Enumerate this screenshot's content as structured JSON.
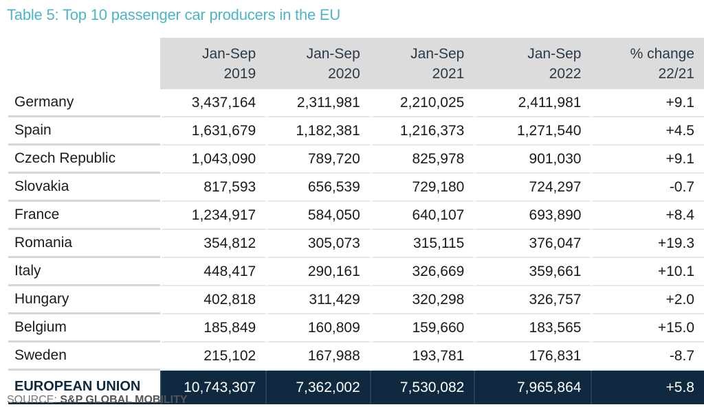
{
  "title": "Table 5: Top 10 passenger car producers in the EU",
  "chart_data": {
    "type": "table",
    "title": "Table 5: Top 10 passenger car producers in the EU",
    "columns": [
      {
        "line1": "Jan-Sep",
        "line2": "2019"
      },
      {
        "line1": "Jan-Sep",
        "line2": "2020"
      },
      {
        "line1": "Jan-Sep",
        "line2": "2021"
      },
      {
        "line1": "Jan-Sep",
        "line2": "2022"
      },
      {
        "line1": "% change",
        "line2": "22/21"
      }
    ],
    "rows": [
      {
        "country": "Germany",
        "values": [
          "3,437,164",
          "2,311,981",
          "2,210,025",
          "2,411,981",
          "+9.1"
        ]
      },
      {
        "country": "Spain",
        "values": [
          "1,631,679",
          "1,182,381",
          "1,216,373",
          "1,271,540",
          "+4.5"
        ]
      },
      {
        "country": "Czech Republic",
        "values": [
          "1,043,090",
          "789,720",
          "825,978",
          "901,030",
          "+9.1"
        ]
      },
      {
        "country": "Slovakia",
        "values": [
          "817,593",
          "656,539",
          "729,180",
          "724,297",
          "-0.7"
        ]
      },
      {
        "country": "France",
        "values": [
          "1,234,917",
          "584,050",
          "640,107",
          "693,890",
          "+8.4"
        ]
      },
      {
        "country": "Romania",
        "values": [
          "354,812",
          "305,073",
          "315,115",
          "376,047",
          "+19.3"
        ]
      },
      {
        "country": "Italy",
        "values": [
          "448,417",
          "290,161",
          "326,669",
          "359,661",
          "+10.1"
        ]
      },
      {
        "country": "Hungary",
        "values": [
          "402,818",
          "311,429",
          "320,298",
          "326,757",
          "+2.0"
        ]
      },
      {
        "country": "Belgium",
        "values": [
          "185,849",
          "160,809",
          "159,660",
          "183,565",
          "+15.0"
        ]
      },
      {
        "country": "Sweden",
        "values": [
          "215,102",
          "167,988",
          "193,781",
          "176,831",
          "-8.7"
        ]
      }
    ],
    "total": {
      "country": "EUROPEAN UNION",
      "values": [
        "10,743,307",
        "7,362,002",
        "7,530,082",
        "7,965,864",
        "+5.8"
      ]
    }
  },
  "source": {
    "label": "SOURCE:",
    "value": "S&P GLOBAL MOBILITY"
  },
  "colors": {
    "title": "#4db6c6",
    "header_bg": "#dcdcdc",
    "total_bg": "#0f2a40"
  }
}
